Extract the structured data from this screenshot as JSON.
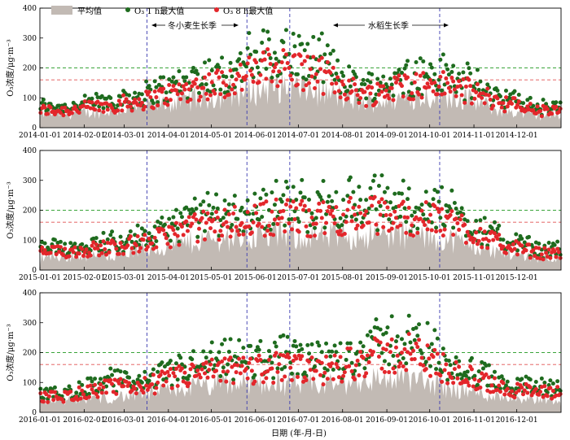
{
  "chart_data": {
    "type": "area+scatter",
    "panels_count": 3,
    "legend": {
      "mean": "平均值",
      "max1h": "O₃ 1 h最大值",
      "max8h": "O₃ 8 h最大值"
    },
    "colors": {
      "mean_fill": "#c2bab4",
      "max1h": "#1e6b1e",
      "max8h": "#e3262b",
      "ref_green": "#3aa43a",
      "ref_red": "#e05050",
      "season_line": "#3b3bb0"
    },
    "ylabel": "O₃浓度/μg·m⁻³",
    "xlabel": "日期 (年-月-日)",
    "ylim": [
      0,
      400
    ],
    "yticks": [
      0,
      100,
      200,
      300,
      400
    ],
    "ref_lines": [
      160,
      200
    ],
    "seasons": [
      {
        "label": "冬小麦生长季",
        "start_month": 3,
        "end_month": 5
      },
      {
        "label": "水稻生长季",
        "start_month": 6,
        "end_month": 10
      }
    ],
    "panels": [
      {
        "year": 2014,
        "xtick_labels": [
          "2014-01-01",
          "2014-02-01",
          "2014-03-01",
          "2014-04-01",
          "2014-05-01",
          "2014-06-01",
          "2014-07-01",
          "2014-08-01",
          "2014-09-01",
          "2014-10-01",
          "2014-11-01",
          "2014-12-01"
        ],
        "season_labels_shown": true,
        "monthly_mean": [
          48,
          55,
          72,
          95,
          115,
          140,
          120,
          82,
          105,
          110,
          62,
          42
        ],
        "monthly_max1h": [
          70,
          85,
          110,
          155,
          190,
          250,
          205,
          130,
          170,
          165,
          105,
          65
        ],
        "monthly_max8h": [
          58,
          72,
          92,
          130,
          160,
          210,
          175,
          108,
          145,
          140,
          90,
          55
        ]
      },
      {
        "year": 2015,
        "xtick_labels": [
          "2015-01-01",
          "2015-02-01",
          "2015-03-01",
          "2015-04-01",
          "2015-05-01",
          "2015-06-01",
          "2015-07-01",
          "2015-08-01",
          "2015-09-01",
          "2015-10-01",
          "2015-11-01",
          "2015-12-01"
        ],
        "season_labels_shown": false,
        "monthly_mean": [
          45,
          52,
          68,
          95,
          112,
          118,
          110,
          120,
          118,
          100,
          62,
          42
        ],
        "monthly_max1h": [
          72,
          88,
          105,
          165,
          190,
          210,
          200,
          215,
          205,
          185,
          110,
          68
        ],
        "monthly_max8h": [
          60,
          75,
          90,
          140,
          160,
          180,
          170,
          185,
          175,
          160,
          90,
          55
        ]
      },
      {
        "year": 2016,
        "xtick_labels": [
          "2016-01-01",
          "2016-02-01",
          "2016-03-01",
          "2016-04-01",
          "2016-05-01",
          "2016-06-01",
          "2016-07-01",
          "2016-08-01",
          "2016-09-01",
          "2016-10-01",
          "2016-11-01",
          "2016-12-01"
        ],
        "season_labels_shown": false,
        "monthly_mean": [
          42,
          48,
          62,
          85,
          95,
          98,
          90,
          110,
          115,
          80,
          55,
          45
        ],
        "monthly_max1h": [
          65,
          95,
          105,
          150,
          165,
          175,
          160,
          215,
          245,
          160,
          105,
          80
        ],
        "monthly_max8h": [
          52,
          80,
          90,
          125,
          140,
          150,
          135,
          180,
          200,
          135,
          85,
          65
        ]
      }
    ]
  }
}
